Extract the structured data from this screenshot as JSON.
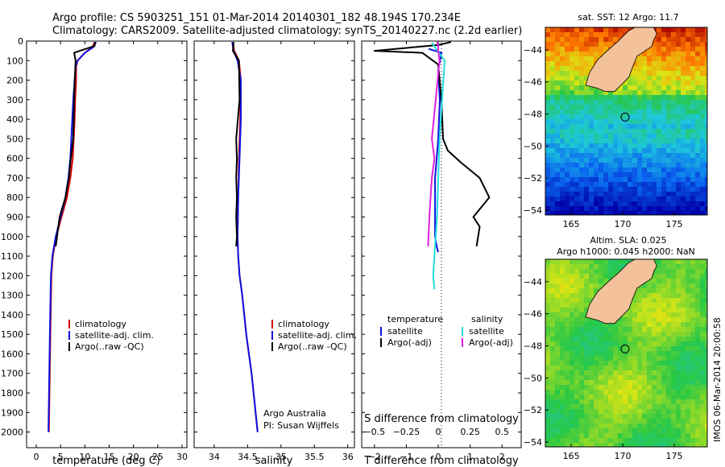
{
  "header": {
    "line1": "Argo profile: CS 5903251_151 01-Mar-2014 20140301_182 48.194S 170.234E",
    "line2": "Climatology: CARS2009. Satellite-adjusted climatology: synTS_20140227.nc (2.2d earlier)"
  },
  "colors": {
    "clim": "#d40000",
    "sat": "#1010e0",
    "argo": "#000000",
    "sal_sat": "#22dddd",
    "sal_argo": "#e020e0"
  },
  "chart_data": [
    {
      "type": "line",
      "title": "Temperature profile",
      "xlabel": "temperature (deg C)",
      "xlim": [
        -2,
        31
      ],
      "ylim": [
        0,
        2080
      ],
      "xticks": [
        0,
        5,
        10,
        15,
        20,
        25,
        30
      ],
      "yticks": [
        0,
        100,
        200,
        300,
        400,
        500,
        600,
        700,
        800,
        900,
        1000,
        1100,
        1200,
        1300,
        1400,
        1500,
        1600,
        1700,
        1800,
        1900,
        2000
      ],
      "legend": [
        "climatology",
        "satellite-adj. clim.",
        "Argo(..raw -QC)"
      ],
      "series": [
        {
          "name": "climatology",
          "color_key": "clim",
          "x": [
            12.0,
            11.6,
            10.0,
            8.5,
            8.2,
            8.2,
            8.0,
            7.9,
            7.7,
            7.5,
            7.0,
            6.3,
            5.2,
            4.1,
            3.4,
            3.1,
            2.9,
            2.6
          ],
          "y": [
            5,
            30,
            60,
            100,
            130,
            200,
            300,
            400,
            500,
            600,
            700,
            800,
            900,
            1000,
            1100,
            1200,
            1500,
            2000
          ]
        },
        {
          "name": "satellite-adj. clim.",
          "color_key": "sat",
          "x": [
            12.3,
            11.8,
            10.0,
            8.5,
            8.1,
            7.9,
            7.6,
            7.4,
            7.2,
            7.0,
            6.6,
            6.0,
            5.0,
            4.0,
            3.3,
            3.0,
            2.8,
            2.5
          ],
          "y": [
            5,
            30,
            60,
            100,
            130,
            200,
            300,
            400,
            500,
            600,
            700,
            800,
            900,
            1000,
            1100,
            1200,
            1500,
            2000
          ]
        },
        {
          "name": "Argo(..raw -QC)",
          "color_key": "argo",
          "x": [
            12.1,
            12.0,
            9.0,
            7.8,
            8.1,
            7.9,
            7.8,
            7.6,
            7.1,
            6.7,
            6.0,
            4.8,
            4.0
          ],
          "y": [
            5,
            25,
            50,
            60,
            100,
            200,
            300,
            500,
            600,
            700,
            800,
            900,
            1050
          ]
        }
      ]
    },
    {
      "type": "line",
      "title": "Salinity profile",
      "xlabel": "salinity",
      "xlim": [
        33.7,
        36.1
      ],
      "ylim": [
        0,
        2080
      ],
      "xticks": [
        34,
        34.5,
        35,
        35.5,
        36
      ],
      "legend": [
        "climatology",
        "satellite-adj. clim.",
        "Argo(..raw -QC)"
      ],
      "annotation": [
        "Argo Australia",
        "PI: Susan Wijffels"
      ],
      "series": [
        {
          "name": "climatology",
          "color_key": "clim",
          "x": [
            34.28,
            34.3,
            34.37,
            34.4,
            34.39,
            34.37,
            34.36,
            34.35,
            34.36,
            34.38,
            34.42,
            34.48,
            34.56,
            34.62,
            34.65
          ],
          "y": [
            5,
            50,
            100,
            200,
            400,
            600,
            800,
            1000,
            1100,
            1200,
            1300,
            1500,
            1700,
            1900,
            2000
          ]
        },
        {
          "name": "satellite-adj. clim.",
          "color_key": "sat",
          "x": [
            34.27,
            34.29,
            34.35,
            34.4,
            34.4,
            34.38,
            34.36,
            34.35,
            34.36,
            34.38,
            34.42,
            34.48,
            34.56,
            34.62,
            34.65
          ],
          "y": [
            5,
            50,
            100,
            200,
            400,
            600,
            800,
            1000,
            1100,
            1200,
            1300,
            1500,
            1700,
            1900,
            2000
          ]
        },
        {
          "name": "Argo(..raw -QC)",
          "color_key": "argo",
          "x": [
            34.29,
            34.28,
            34.37,
            34.38,
            34.33,
            34.34,
            34.33,
            34.34,
            34.33,
            34.34,
            34.33
          ],
          "y": [
            5,
            50,
            100,
            300,
            500,
            600,
            700,
            800,
            900,
            1000,
            1050
          ]
        }
      ]
    },
    {
      "type": "line",
      "title": "Difference from climatology",
      "xlabel": "T difference from climatology",
      "xlabel_top": "S difference from climatology",
      "xlim": [
        -2.4,
        2.6
      ],
      "ylim": [
        0,
        2080
      ],
      "xticks": [
        -2,
        -1,
        0,
        1,
        2
      ],
      "xticks_top": [
        -0.5,
        -0.25,
        0,
        0.25,
        0.5
      ],
      "legend_header": [
        "temperature",
        "salinity"
      ],
      "legend": [
        "satellite",
        "Argo(-adj)",
        "satellite",
        "Argo(-adj)"
      ],
      "series": [
        {
          "name": "temperature satellite",
          "color_key": "sat",
          "x": [
            -0.3,
            0.1,
            0.0,
            0.05,
            0.0,
            -0.1,
            -0.1,
            -0.1,
            -0.05,
            0.0
          ],
          "y": [
            40,
            60,
            150,
            300,
            500,
            700,
            900,
            1000,
            1050,
            1080
          ]
        },
        {
          "name": "temperature Argo(-adj)",
          "color_key": "argo",
          "x": [
            0.4,
            0.0,
            -2.0,
            -0.5,
            0.0,
            0.1,
            0.15,
            0.3,
            0.7,
            1.3,
            1.6,
            1.3,
            1.1,
            1.3,
            1.2
          ],
          "y": [
            5,
            20,
            50,
            60,
            120,
            300,
            500,
            560,
            620,
            700,
            800,
            860,
            900,
            950,
            1050
          ]
        },
        {
          "name": "salinity satellite",
          "color_key": "sal_sat",
          "x": [
            -0.05,
            0.05,
            0.03,
            0.01,
            0.0,
            -0.01,
            -0.02,
            -0.03,
            -0.04,
            -0.03
          ],
          "y": [
            10,
            100,
            300,
            500,
            700,
            900,
            1000,
            1100,
            1200,
            1270
          ]
        },
        {
          "name": "salinity Argo(-adj)",
          "color_key": "sal_argo",
          "x": [
            -0.01,
            0.0,
            0.0,
            0.01,
            -0.02,
            -0.05,
            -0.03,
            -0.05,
            -0.06,
            -0.07,
            -0.08
          ],
          "y": [
            5,
            20,
            50,
            100,
            300,
            500,
            600,
            700,
            800,
            900,
            1050
          ]
        }
      ]
    },
    {
      "type": "heatmap",
      "title": "sat. SST: 12 Argo: 11.7",
      "xlim": [
        162.5,
        178.2
      ],
      "ylim": [
        -54.3,
        -42.6
      ],
      "xticks": [
        165,
        170,
        175
      ],
      "yticks": [
        -44,
        -46,
        -48,
        -50,
        -52,
        -54
      ],
      "marker": {
        "lon": 170.234,
        "lat": -48.194
      }
    },
    {
      "type": "heatmap",
      "title": "Altim. SLA: 0.025",
      "subtitle": "Argo h1000: 0.045 h2000: NaN",
      "xlim": [
        162.5,
        178.2
      ],
      "ylim": [
        -54.3,
        -42.6
      ],
      "xticks": [
        165,
        170,
        175
      ],
      "yticks": [
        -44,
        -46,
        -48,
        -50,
        -52,
        -54
      ],
      "marker": {
        "lon": 170.234,
        "lat": -48.194
      }
    }
  ],
  "watermark": "IMOS 06-Mar-2014 20:00:58"
}
